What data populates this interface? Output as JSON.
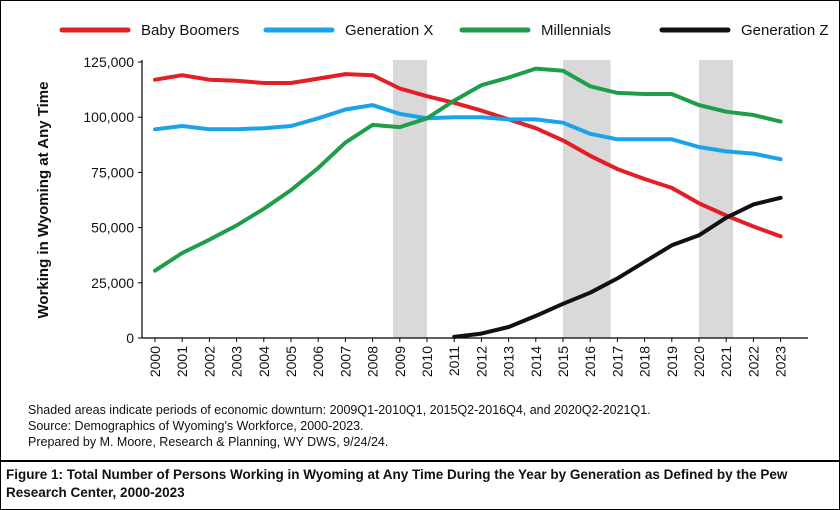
{
  "chart_data": {
    "type": "line",
    "title": "",
    "xlabel": "",
    "ylabel": "Working in Wyoming at Any Time",
    "categories": [
      "2000",
      "2001",
      "2002",
      "2003",
      "2004",
      "2005",
      "2006",
      "2007",
      "2008",
      "2009",
      "2010",
      "2011",
      "2012",
      "2013",
      "2014",
      "2015",
      "2016",
      "2017",
      "2018",
      "2019",
      "2020",
      "2021",
      "2022",
      "2023"
    ],
    "ylim": [
      0,
      125000
    ],
    "y_ticks": [
      0,
      25000,
      50000,
      75000,
      100000,
      125000
    ],
    "y_tick_labels": [
      "0",
      "25,000",
      "50,000",
      "75,000",
      "100,000",
      "125,000"
    ],
    "legend_position": "top",
    "grid": false,
    "shaded_periods": [
      {
        "start": 2008.75,
        "end": 2010.0
      },
      {
        "start": 2015.0,
        "end": 2016.75
      },
      {
        "start": 2020.0,
        "end": 2021.25
      }
    ],
    "series": [
      {
        "name": "Baby Boomers",
        "color": "#e31f26",
        "values": [
          117000,
          119000,
          117000,
          116500,
          115500,
          115500,
          117500,
          119500,
          119000,
          113000,
          109500,
          106500,
          103000,
          99000,
          95000,
          89500,
          82500,
          76500,
          72000,
          68000,
          61000,
          55500,
          50500,
          46000
        ]
      },
      {
        "name": "Generation X",
        "color": "#1aa3e8",
        "values": [
          94500,
          96000,
          94500,
          94500,
          95000,
          96000,
          99500,
          103500,
          105500,
          101500,
          99500,
          100000,
          100000,
          99000,
          99000,
          97500,
          92500,
          90000,
          90000,
          90000,
          86500,
          84500,
          83500,
          81000
        ]
      },
      {
        "name": "Millennials",
        "color": "#1f9e4a",
        "values": [
          30500,
          38500,
          44500,
          51000,
          58500,
          67000,
          77000,
          88500,
          96500,
          95500,
          99500,
          107500,
          114500,
          118000,
          122000,
          121000,
          114000,
          111000,
          110500,
          110500,
          105500,
          102500,
          101000,
          98000
        ]
      },
      {
        "name": "Generation Z",
        "color": "#111111",
        "values": [
          null,
          null,
          null,
          null,
          null,
          null,
          null,
          null,
          null,
          null,
          null,
          500,
          2000,
          5000,
          10000,
          15500,
          20500,
          27000,
          34500,
          42000,
          46500,
          54500,
          60500,
          63500
        ]
      }
    ]
  },
  "notes": {
    "shading": "Shaded areas indicate periods of economic downturn: 2009Q1-2010Q1, 2015Q2-2016Q4, and 2020Q2-2021Q1.",
    "source": "Source: Demographics of Wyoming's Workforce, 2000-2023.",
    "prepared_by": "Prepared by M. Moore, Research & Planning, WY DWS, 9/24/24."
  },
  "caption": "Figure 1: Total Number of Persons Working in Wyoming at Any Time During the Year by Generation as Defined by the Pew Research Center, 2000-2023"
}
